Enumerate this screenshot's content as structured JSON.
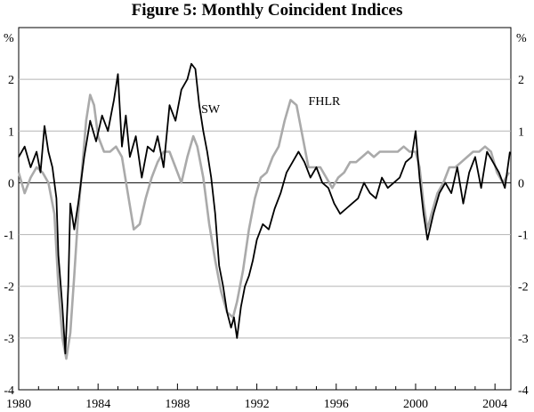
{
  "chart_data": {
    "type": "line",
    "title": "Figure 5: Monthly Coincident Indices",
    "ylabel_left": "%",
    "ylabel_right": "%",
    "xlim": [
      1980,
      2004.8
    ],
    "ylim": [
      -4,
      3
    ],
    "y_ticks": [
      {
        "value": 2,
        "label": "2"
      },
      {
        "value": 1,
        "label": "1"
      },
      {
        "value": 0,
        "label": "0"
      },
      {
        "value": -1,
        "label": "-1"
      },
      {
        "value": -2,
        "label": "-2"
      },
      {
        "value": -3,
        "label": "-3"
      },
      {
        "value": -4,
        "label": "-4"
      }
    ],
    "x_ticks": [
      {
        "value": 1980,
        "label": "1980"
      },
      {
        "value": 1984,
        "label": "1984"
      },
      {
        "value": 1988,
        "label": "1988"
      },
      {
        "value": 1992,
        "label": "1992"
      },
      {
        "value": 1996,
        "label": "1996"
      },
      {
        "value": 2000,
        "label": "2000"
      },
      {
        "value": 2004,
        "label": "2004"
      }
    ],
    "grid": "horizontal",
    "series": [
      {
        "name": "SW",
        "color": "#000000",
        "x": [
          1980.0,
          1980.3,
          1980.6,
          1980.9,
          1981.1,
          1981.3,
          1981.5,
          1981.7,
          1981.9,
          1982.0,
          1982.2,
          1982.35,
          1982.5,
          1982.6,
          1982.8,
          1983.0,
          1983.3,
          1983.6,
          1983.9,
          1984.2,
          1984.5,
          1984.8,
          1985.0,
          1985.2,
          1985.4,
          1985.6,
          1985.9,
          1986.2,
          1986.5,
          1986.8,
          1987.0,
          1987.3,
          1987.6,
          1987.9,
          1988.2,
          1988.5,
          1988.7,
          1988.9,
          1989.1,
          1989.3,
          1989.5,
          1989.7,
          1989.9,
          1990.1,
          1990.3,
          1990.5,
          1990.7,
          1990.85,
          1991.0,
          1991.2,
          1991.4,
          1991.6,
          1991.8,
          1992.0,
          1992.3,
          1992.6,
          1992.9,
          1993.2,
          1993.5,
          1993.8,
          1994.1,
          1994.4,
          1994.7,
          1995.0,
          1995.3,
          1995.6,
          1995.9,
          1996.2,
          1996.5,
          1996.8,
          1997.1,
          1997.4,
          1997.7,
          1998.0,
          1998.3,
          1998.6,
          1998.9,
          1999.2,
          1999.5,
          1999.8,
          2000.0,
          2000.2,
          2000.4,
          2000.6,
          2000.9,
          2001.2,
          2001.5,
          2001.8,
          2002.1,
          2002.4,
          2002.7,
          2003.0,
          2003.3,
          2003.6,
          2003.9,
          2004.2,
          2004.5,
          2004.75
        ],
        "values": [
          0.5,
          0.7,
          0.3,
          0.6,
          0.2,
          1.1,
          0.6,
          0.3,
          -0.3,
          -1.4,
          -2.4,
          -3.3,
          -2.0,
          -0.4,
          -0.9,
          -0.4,
          0.5,
          1.2,
          0.8,
          1.3,
          1.0,
          1.6,
          2.1,
          0.7,
          1.3,
          0.5,
          0.9,
          0.1,
          0.7,
          0.6,
          0.9,
          0.3,
          1.5,
          1.2,
          1.8,
          2.0,
          2.3,
          2.2,
          1.5,
          1.0,
          0.6,
          0.1,
          -0.6,
          -1.6,
          -2.0,
          -2.5,
          -2.8,
          -2.6,
          -3.0,
          -2.4,
          -2.0,
          -1.8,
          -1.5,
          -1.1,
          -0.8,
          -0.9,
          -0.5,
          -0.2,
          0.2,
          0.4,
          0.6,
          0.4,
          0.1,
          0.3,
          0.0,
          -0.1,
          -0.4,
          -0.6,
          -0.5,
          -0.4,
          -0.3,
          0.0,
          -0.2,
          -0.3,
          0.1,
          -0.1,
          0.0,
          0.1,
          0.4,
          0.5,
          1.0,
          0.1,
          -0.6,
          -1.1,
          -0.6,
          -0.2,
          0.0,
          -0.2,
          0.3,
          -0.4,
          0.2,
          0.5,
          -0.1,
          0.6,
          0.4,
          0.2,
          -0.1,
          0.6
        ]
      },
      {
        "name": "FHLR",
        "color": "#aaaaaa",
        "x": [
          1980.0,
          1980.3,
          1980.6,
          1980.9,
          1981.2,
          1981.5,
          1981.8,
          1982.0,
          1982.2,
          1982.4,
          1982.6,
          1982.8,
          1983.0,
          1983.2,
          1983.4,
          1983.6,
          1983.8,
          1984.0,
          1984.3,
          1984.6,
          1984.9,
          1985.2,
          1985.5,
          1985.8,
          1986.1,
          1986.4,
          1986.7,
          1987.0,
          1987.3,
          1987.6,
          1987.9,
          1988.2,
          1988.5,
          1988.8,
          1989.0,
          1989.3,
          1989.6,
          1989.9,
          1990.2,
          1990.5,
          1990.8,
          1991.0,
          1991.3,
          1991.6,
          1991.9,
          1992.2,
          1992.5,
          1992.8,
          1993.1,
          1993.4,
          1993.7,
          1994.0,
          1994.3,
          1994.6,
          1994.9,
          1995.2,
          1995.5,
          1995.8,
          1996.1,
          1996.4,
          1996.7,
          1997.0,
          1997.3,
          1997.6,
          1997.9,
          1998.2,
          1998.5,
          1998.8,
          1999.1,
          1999.4,
          1999.7,
          2000.0,
          2000.2,
          2000.4,
          2000.6,
          2000.8,
          2001.1,
          2001.4,
          2001.7,
          2002.0,
          2002.3,
          2002.6,
          2002.9,
          2003.2,
          2003.5,
          2003.8,
          2004.1,
          2004.4,
          2004.7
        ],
        "values": [
          0.2,
          -0.2,
          0.1,
          0.3,
          0.2,
          0.0,
          -0.6,
          -2.0,
          -3.0,
          -3.4,
          -2.9,
          -1.8,
          -0.6,
          0.3,
          1.2,
          1.7,
          1.5,
          0.9,
          0.6,
          0.6,
          0.7,
          0.5,
          -0.2,
          -0.9,
          -0.8,
          -0.3,
          0.1,
          0.4,
          0.6,
          0.6,
          0.3,
          0.0,
          0.5,
          0.9,
          0.7,
          0.1,
          -0.8,
          -1.5,
          -2.1,
          -2.5,
          -2.6,
          -2.3,
          -1.7,
          -0.9,
          -0.3,
          0.1,
          0.2,
          0.5,
          0.7,
          1.2,
          1.6,
          1.5,
          0.9,
          0.3,
          0.3,
          0.3,
          0.1,
          -0.1,
          0.1,
          0.2,
          0.4,
          0.4,
          0.5,
          0.6,
          0.5,
          0.6,
          0.6,
          0.6,
          0.6,
          0.7,
          0.6,
          0.6,
          0.3,
          -0.4,
          -0.9,
          -0.6,
          -0.2,
          0.0,
          0.3,
          0.3,
          0.4,
          0.5,
          0.6,
          0.6,
          0.7,
          0.6,
          0.2,
          0.0,
          0.2
        ]
      }
    ],
    "annotations": [
      {
        "text": "SW",
        "x": 1989.2,
        "y": 1.35
      },
      {
        "text": "FHLR",
        "x": 1994.6,
        "y": 1.5
      }
    ]
  }
}
